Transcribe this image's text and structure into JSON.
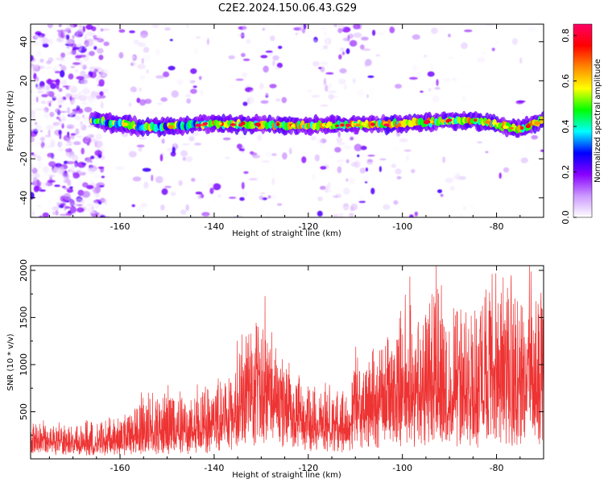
{
  "title": "C2E2.2024.150.06.43.G29",
  "chart_data": [
    {
      "type": "heatmap",
      "xlabel": "Height of straight line (km)",
      "ylabel": "Frequency (Hz)",
      "xlim": [
        -179,
        -70
      ],
      "ylim": [
        -50,
        49
      ],
      "x_ticks": [
        -160,
        -140,
        -120,
        -100,
        -80
      ],
      "y_ticks": [
        -40,
        -20,
        0,
        20,
        40
      ],
      "colorbar": {
        "label": "Normalized spectral amplitude",
        "range": [
          0,
          0.85
        ],
        "ticks": [
          0.0,
          0.2,
          0.4,
          0.6,
          0.8
        ],
        "colormap": [
          "#ffffff",
          "#cc99ff",
          "#8800ff",
          "#0000ff",
          "#00ffff",
          "#00ff00",
          "#ffff00",
          "#ff8800",
          "#ff0000",
          "#ff0066"
        ]
      },
      "signal_band": {
        "x_start": -166,
        "x_end": -70,
        "center_freq_points": [
          [
            -166,
            0
          ],
          [
            -155,
            -4
          ],
          [
            -140,
            -2
          ],
          [
            -120,
            -3
          ],
          [
            -100,
            -2
          ],
          [
            -85,
            0
          ],
          [
            -75,
            -5
          ],
          [
            -70,
            0
          ]
        ],
        "halfwidth": 3,
        "peak_amplitude": 0.85
      },
      "noise_bands_x": [
        -176,
        -171,
        -166,
        -156,
        -150,
        -145,
        -133,
        -128,
        -117,
        -115,
        -112,
        -108
      ]
    },
    {
      "type": "line",
      "xlabel": "Height of straight line (km)",
      "ylabel": "SNR (10 * v/v)",
      "xlim": [
        -179,
        -70
      ],
      "ylim": [
        0,
        2050
      ],
      "x_ticks": [
        -160,
        -140,
        -120,
        -100,
        -80
      ],
      "y_ticks": [
        500,
        1000,
        1500,
        2000
      ],
      "color": "#ee3333",
      "series": [
        {
          "envelope": {
            "x": [
              -179,
              -170,
              -160,
              -152,
              -148,
              -142,
              -138,
              -133,
              -130,
              -128,
              -125,
              -120,
              -115,
              -111,
              -110,
              -108,
              -105,
              -102,
              -99,
              -96,
              -94,
              -92,
              -90,
              -88,
              -86,
              -84,
              -82,
              -80,
              -78,
              -76,
              -74,
              -73,
              -72,
              -71,
              -70
            ],
            "baseline": [
              120,
              120,
              130,
              180,
              180,
              230,
              300,
              420,
              600,
              500,
              380,
              270,
              240,
              230,
              480,
              380,
              420,
              460,
              540,
              450,
              620,
              380,
              420,
              480,
              420,
              450,
              460,
              520,
              420,
              460,
              640,
              800,
              560,
              450,
              500
            ],
            "peak": [
              360,
              370,
              420,
              760,
              620,
              790,
              780,
              1300,
              1520,
              1200,
              1000,
              720,
              700,
              650,
              1300,
              980,
              1060,
              1250,
              1880,
              1550,
              1700,
              2050,
              1500,
              1860,
              1400,
              1650,
              1800,
              1850,
              1700,
              1800,
              1620,
              2050,
              1450,
              1800,
              1700
            ]
          }
        }
      ]
    }
  ]
}
